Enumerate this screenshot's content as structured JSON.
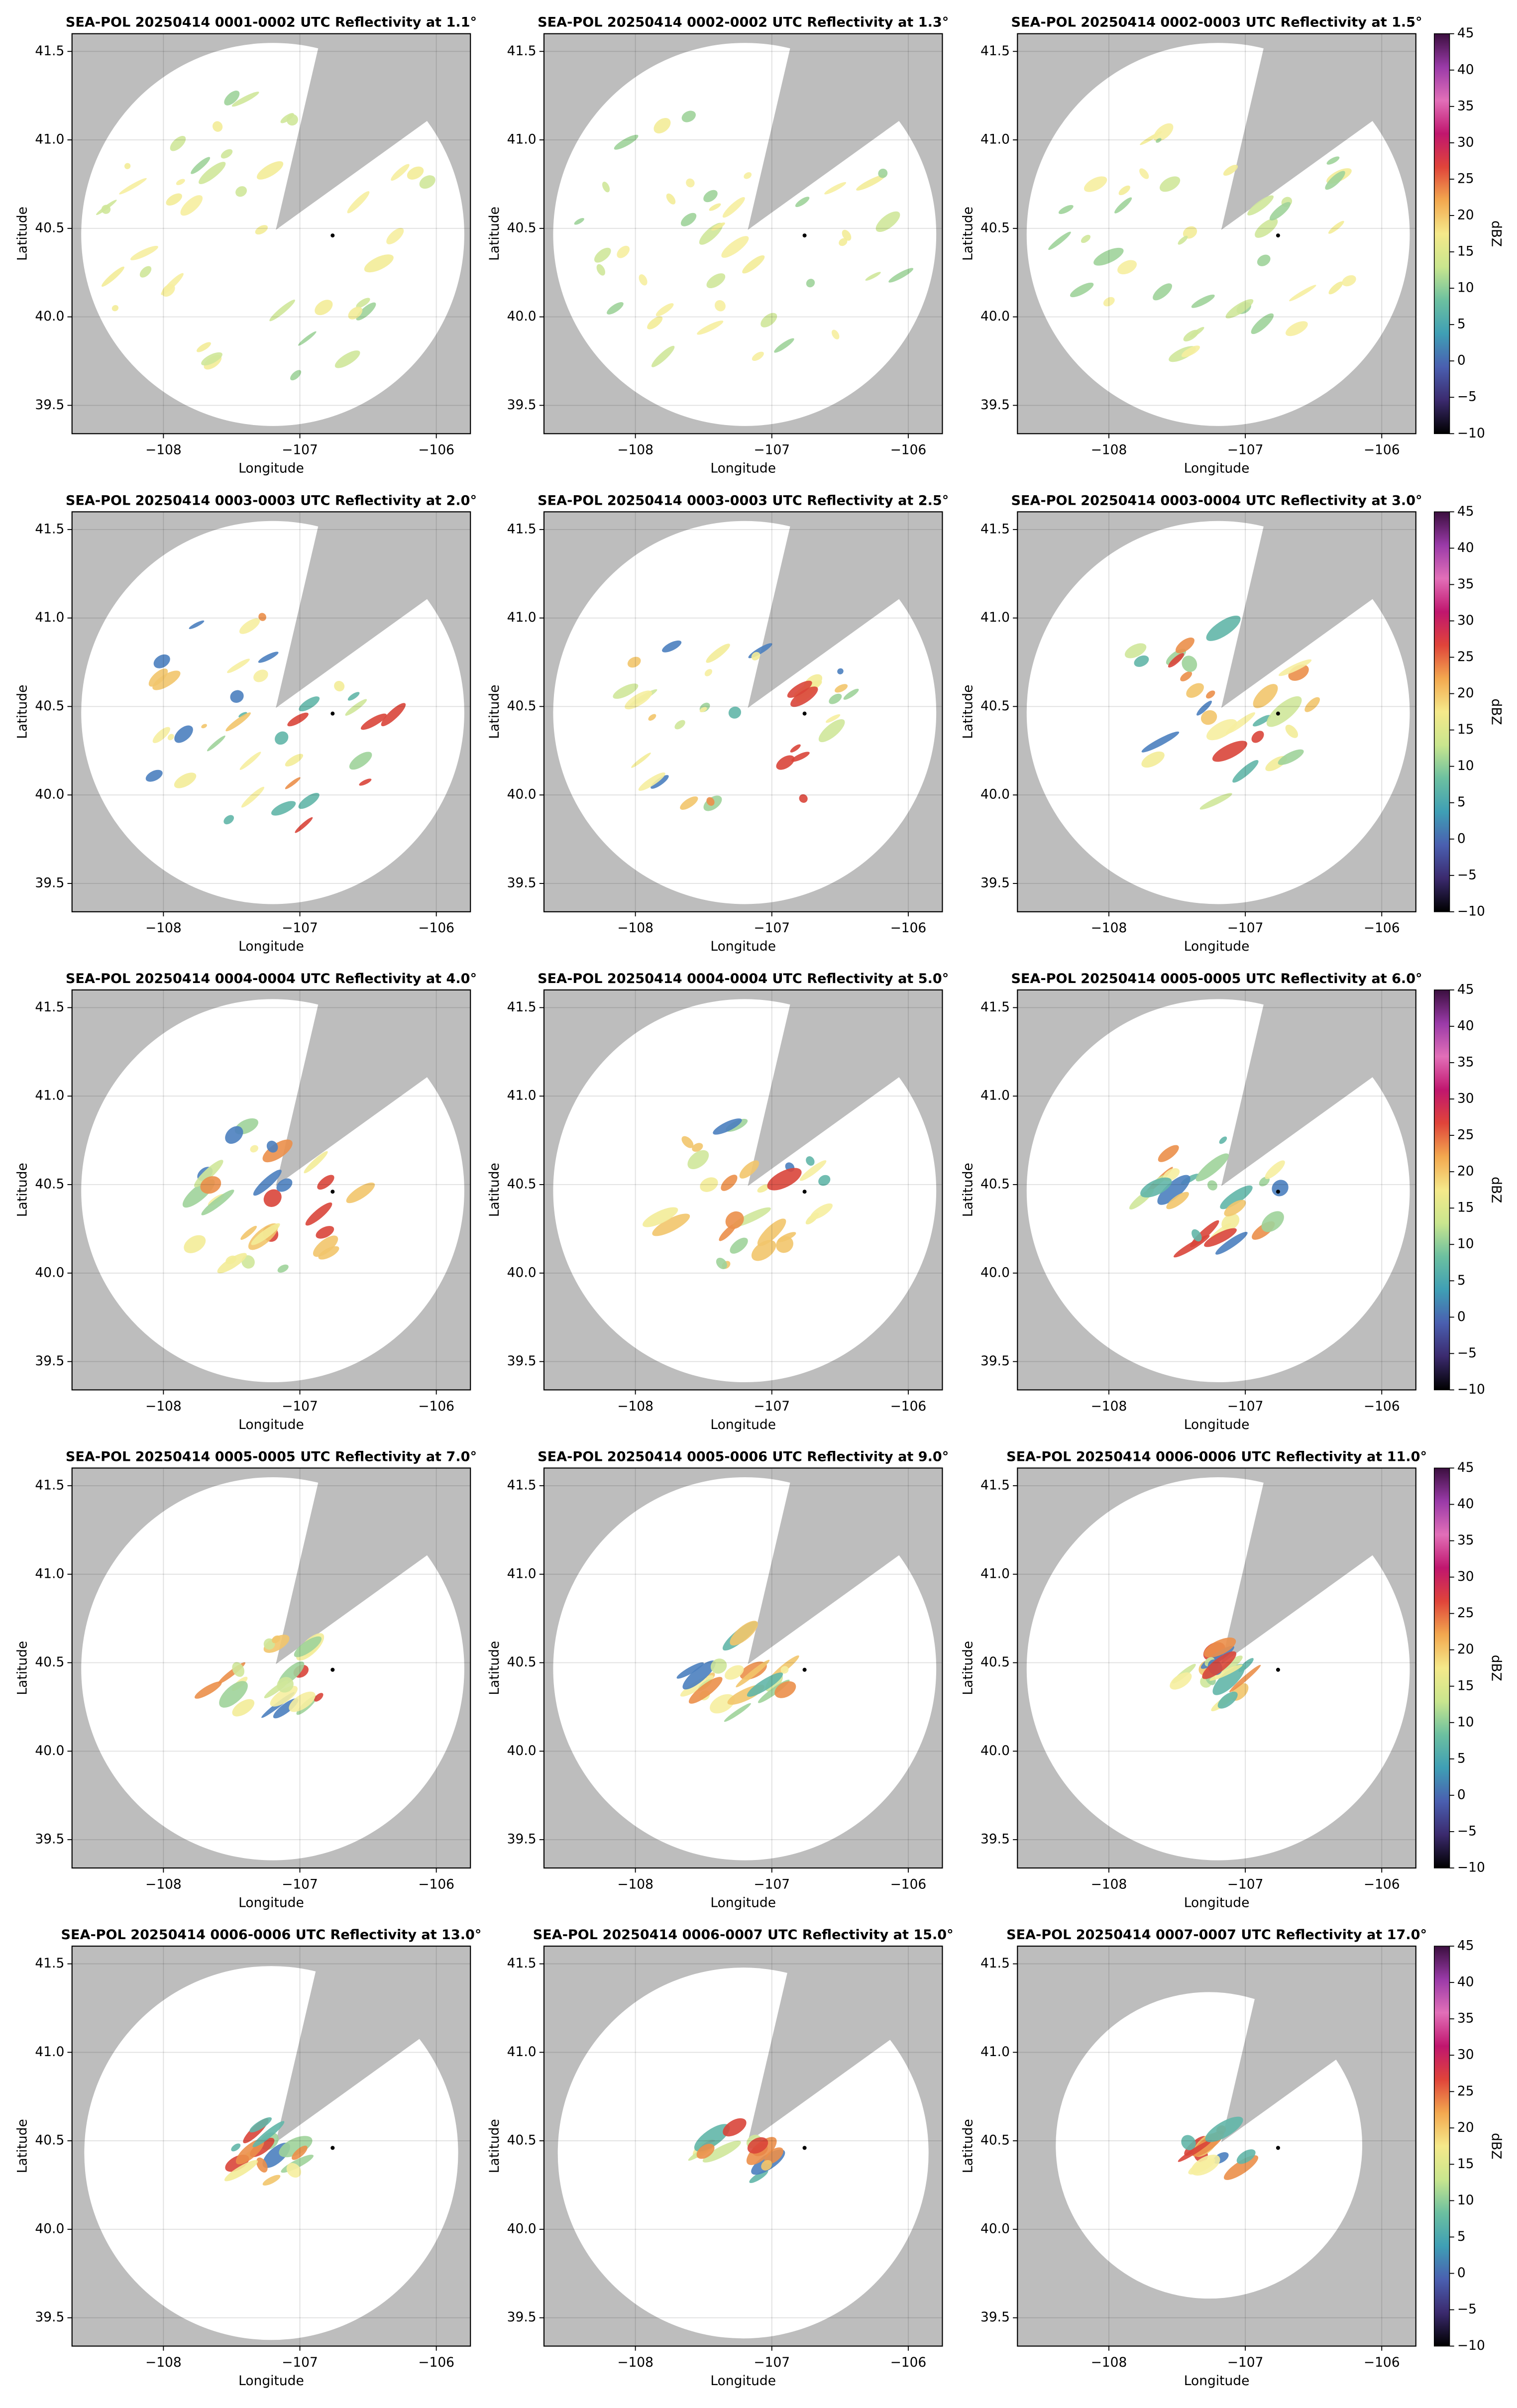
{
  "chart_data": [
    {
      "type": "scatter",
      "title": "SEA-POL 20250414 0001-0002 UTC Reflectivity at 1.1°",
      "xlabel": "Longitude",
      "ylabel": "Latitude",
      "xlim": [
        -108.67,
        -105.75
      ],
      "ylim": [
        39.34,
        41.6
      ],
      "xticks": [
        {
          "value": -108,
          "label": "−108"
        },
        {
          "value": -107,
          "label": "−107"
        },
        {
          "value": -106,
          "label": "−106"
        }
      ],
      "yticks": [
        39.5,
        {
          "value": 40,
          "label": "40.0"
        },
        40.5,
        {
          "value": 41,
          "label": "41.0"
        },
        41.5
      ],
      "grid": true,
      "x": [
        -106.76
      ],
      "y": [
        40.46
      ],
      "color": "#000000"
    },
    {
      "type": "scatter",
      "title": "SEA-POL 20250414 0002-0002 UTC Reflectivity at 1.3°",
      "xlabel": "Longitude",
      "ylabel": "Latitude",
      "xlim": [
        -108.67,
        -105.75
      ],
      "ylim": [
        39.34,
        41.6
      ],
      "xticks": [
        {
          "value": -108,
          "label": "−108"
        },
        {
          "value": -107,
          "label": "−107"
        },
        {
          "value": -106,
          "label": "−106"
        }
      ],
      "yticks": [
        39.5,
        {
          "value": 40,
          "label": "40.0"
        },
        40.5,
        {
          "value": 41,
          "label": "41.0"
        },
        41.5
      ],
      "grid": true,
      "x": [
        -106.76
      ],
      "y": [
        40.46
      ],
      "color": "#000000"
    },
    {
      "type": "scatter",
      "title": "SEA-POL 20250414 0002-0003 UTC Reflectivity at 1.5°",
      "xlabel": "Longitude",
      "ylabel": "Latitude",
      "xlim": [
        -108.67,
        -105.75
      ],
      "ylim": [
        39.34,
        41.6
      ],
      "xticks": [
        {
          "value": -108,
          "label": "−108"
        },
        {
          "value": -107,
          "label": "−107"
        },
        {
          "value": -106,
          "label": "−106"
        }
      ],
      "yticks": [
        39.5,
        {
          "value": 40,
          "label": "40.0"
        },
        40.5,
        {
          "value": 41,
          "label": "41.0"
        },
        41.5
      ],
      "grid": true,
      "x": [
        -106.76
      ],
      "y": [
        40.46
      ],
      "color": "#000000",
      "colorbar": {
        "label": "dBZ",
        "lim": [
          -10,
          45
        ],
        "ticks": [
          {
            "value": -10,
            "label": "−10"
          },
          {
            "value": -5,
            "label": "−5"
          },
          0,
          5,
          10,
          15,
          20,
          25,
          30,
          35,
          40,
          45
        ],
        "colors": [
          "#000000",
          "#3b2a6e",
          "#4a5fb0",
          "#3f9fb5",
          "#6cc0a0",
          "#c9e68e",
          "#f5e98a",
          "#f3a84f",
          "#e0443a",
          "#c0166e",
          "#e26fb8",
          "#9a3aa8",
          "#3b0f3f"
        ]
      }
    },
    {
      "type": "scatter",
      "title": "SEA-POL 20250414 0003-0003 UTC Reflectivity at 2.0°",
      "xlabel": "Longitude",
      "ylabel": "Latitude",
      "xlim": [
        -108.67,
        -105.75
      ],
      "ylim": [
        39.34,
        41.6
      ],
      "xticks": [
        {
          "value": -108,
          "label": "−108"
        },
        {
          "value": -107,
          "label": "−107"
        },
        {
          "value": -106,
          "label": "−106"
        }
      ],
      "yticks": [
        39.5,
        {
          "value": 40,
          "label": "40.0"
        },
        40.5,
        {
          "value": 41,
          "label": "41.0"
        },
        41.5
      ],
      "grid": true,
      "x": [
        -106.76
      ],
      "y": [
        40.46
      ],
      "color": "#000000"
    },
    {
      "type": "scatter",
      "title": "SEA-POL 20250414 0003-0003 UTC Reflectivity at 2.5°",
      "xlabel": "Longitude",
      "ylabel": "Latitude",
      "xlim": [
        -108.67,
        -105.75
      ],
      "ylim": [
        39.34,
        41.6
      ],
      "xticks": [
        {
          "value": -108,
          "label": "−108"
        },
        {
          "value": -107,
          "label": "−107"
        },
        {
          "value": -106,
          "label": "−106"
        }
      ],
      "yticks": [
        39.5,
        {
          "value": 40,
          "label": "40.0"
        },
        40.5,
        {
          "value": 41,
          "label": "41.0"
        },
        41.5
      ],
      "grid": true,
      "x": [
        -106.76
      ],
      "y": [
        40.46
      ],
      "color": "#000000"
    },
    {
      "type": "scatter",
      "title": "SEA-POL 20250414 0003-0004 UTC Reflectivity at 3.0°",
      "xlabel": "Longitude",
      "ylabel": "Latitude",
      "xlim": [
        -108.67,
        -105.75
      ],
      "ylim": [
        39.34,
        41.6
      ],
      "xticks": [
        {
          "value": -108,
          "label": "−108"
        },
        {
          "value": -107,
          "label": "−107"
        },
        {
          "value": -106,
          "label": "−106"
        }
      ],
      "yticks": [
        39.5,
        {
          "value": 40,
          "label": "40.0"
        },
        40.5,
        {
          "value": 41,
          "label": "41.0"
        },
        41.5
      ],
      "grid": true,
      "x": [
        -106.76
      ],
      "y": [
        40.46
      ],
      "color": "#000000",
      "colorbar": {
        "label": "dBZ",
        "lim": [
          -10,
          45
        ],
        "ticks": [
          {
            "value": -10,
            "label": "−10"
          },
          {
            "value": -5,
            "label": "−5"
          },
          0,
          5,
          10,
          15,
          20,
          25,
          30,
          35,
          40,
          45
        ],
        "colors": [
          "#000000",
          "#3b2a6e",
          "#4a5fb0",
          "#3f9fb5",
          "#6cc0a0",
          "#c9e68e",
          "#f5e98a",
          "#f3a84f",
          "#e0443a",
          "#c0166e",
          "#e26fb8",
          "#9a3aa8",
          "#3b0f3f"
        ]
      }
    },
    {
      "type": "scatter",
      "title": "SEA-POL 20250414 0004-0004 UTC Reflectivity at 4.0°",
      "xlabel": "Longitude",
      "ylabel": "Latitude",
      "xlim": [
        -108.67,
        -105.75
      ],
      "ylim": [
        39.34,
        41.6
      ],
      "xticks": [
        {
          "value": -108,
          "label": "−108"
        },
        {
          "value": -107,
          "label": "−107"
        },
        {
          "value": -106,
          "label": "−106"
        }
      ],
      "yticks": [
        39.5,
        {
          "value": 40,
          "label": "40.0"
        },
        40.5,
        {
          "value": 41,
          "label": "41.0"
        },
        41.5
      ],
      "grid": true,
      "x": [
        -106.76
      ],
      "y": [
        40.46
      ],
      "color": "#000000"
    },
    {
      "type": "scatter",
      "title": "SEA-POL 20250414 0004-0004 UTC Reflectivity at 5.0°",
      "xlabel": "Longitude",
      "ylabel": "Latitude",
      "xlim": [
        -108.67,
        -105.75
      ],
      "ylim": [
        39.34,
        41.6
      ],
      "xticks": [
        {
          "value": -108,
          "label": "−108"
        },
        {
          "value": -107,
          "label": "−107"
        },
        {
          "value": -106,
          "label": "−106"
        }
      ],
      "yticks": [
        39.5,
        {
          "value": 40,
          "label": "40.0"
        },
        40.5,
        {
          "value": 41,
          "label": "41.0"
        },
        41.5
      ],
      "grid": true,
      "x": [
        -106.76
      ],
      "y": [
        40.46
      ],
      "color": "#000000"
    },
    {
      "type": "scatter",
      "title": "SEA-POL 20250414 0005-0005 UTC Reflectivity at 6.0°",
      "xlabel": "Longitude",
      "ylabel": "Latitude",
      "xlim": [
        -108.67,
        -105.75
      ],
      "ylim": [
        39.34,
        41.6
      ],
      "xticks": [
        {
          "value": -108,
          "label": "−108"
        },
        {
          "value": -107,
          "label": "−107"
        },
        {
          "value": -106,
          "label": "−106"
        }
      ],
      "yticks": [
        39.5,
        {
          "value": 40,
          "label": "40.0"
        },
        40.5,
        {
          "value": 41,
          "label": "41.0"
        },
        41.5
      ],
      "grid": true,
      "x": [
        -106.76
      ],
      "y": [
        40.46
      ],
      "color": "#000000",
      "colorbar": {
        "label": "dBZ",
        "lim": [
          -10,
          45
        ],
        "ticks": [
          {
            "value": -10,
            "label": "−10"
          },
          {
            "value": -5,
            "label": "−5"
          },
          0,
          5,
          10,
          15,
          20,
          25,
          30,
          35,
          40,
          45
        ],
        "colors": [
          "#000000",
          "#3b2a6e",
          "#4a5fb0",
          "#3f9fb5",
          "#6cc0a0",
          "#c9e68e",
          "#f5e98a",
          "#f3a84f",
          "#e0443a",
          "#c0166e",
          "#e26fb8",
          "#9a3aa8",
          "#3b0f3f"
        ]
      }
    },
    {
      "type": "scatter",
      "title": "SEA-POL 20250414 0005-0005 UTC Reflectivity at 7.0°",
      "xlabel": "Longitude",
      "ylabel": "Latitude",
      "xlim": [
        -108.67,
        -105.75
      ],
      "ylim": [
        39.34,
        41.6
      ],
      "xticks": [
        {
          "value": -108,
          "label": "−108"
        },
        {
          "value": -107,
          "label": "−107"
        },
        {
          "value": -106,
          "label": "−106"
        }
      ],
      "yticks": [
        39.5,
        {
          "value": 40,
          "label": "40.0"
        },
        40.5,
        {
          "value": 41,
          "label": "41.0"
        },
        41.5
      ],
      "grid": true,
      "x": [
        -106.76
      ],
      "y": [
        40.46
      ],
      "color": "#000000"
    },
    {
      "type": "scatter",
      "title": "SEA-POL 20250414 0005-0006 UTC Reflectivity at 9.0°",
      "xlabel": "Longitude",
      "ylabel": "Latitude",
      "xlim": [
        -108.67,
        -105.75
      ],
      "ylim": [
        39.34,
        41.6
      ],
      "xticks": [
        {
          "value": -108,
          "label": "−108"
        },
        {
          "value": -107,
          "label": "−107"
        },
        {
          "value": -106,
          "label": "−106"
        }
      ],
      "yticks": [
        39.5,
        {
          "value": 40,
          "label": "40.0"
        },
        40.5,
        {
          "value": 41,
          "label": "41.0"
        },
        41.5
      ],
      "grid": true,
      "x": [
        -106.76
      ],
      "y": [
        40.46
      ],
      "color": "#000000"
    },
    {
      "type": "scatter",
      "title": "SEA-POL 20250414 0006-0006 UTC Reflectivity at 11.0°",
      "xlabel": "Longitude",
      "ylabel": "Latitude",
      "xlim": [
        -108.67,
        -105.75
      ],
      "ylim": [
        39.34,
        41.6
      ],
      "xticks": [
        {
          "value": -108,
          "label": "−108"
        },
        {
          "value": -107,
          "label": "−107"
        },
        {
          "value": -106,
          "label": "−106"
        }
      ],
      "yticks": [
        39.5,
        {
          "value": 40,
          "label": "40.0"
        },
        40.5,
        {
          "value": 41,
          "label": "41.0"
        },
        41.5
      ],
      "grid": true,
      "x": [
        -106.76
      ],
      "y": [
        40.46
      ],
      "color": "#000000",
      "colorbar": {
        "label": "dBZ",
        "lim": [
          -10,
          45
        ],
        "ticks": [
          {
            "value": -10,
            "label": "−10"
          },
          {
            "value": -5,
            "label": "−5"
          },
          0,
          5,
          10,
          15,
          20,
          25,
          30,
          35,
          40,
          45
        ],
        "colors": [
          "#000000",
          "#3b2a6e",
          "#4a5fb0",
          "#3f9fb5",
          "#6cc0a0",
          "#c9e68e",
          "#f5e98a",
          "#f3a84f",
          "#e0443a",
          "#c0166e",
          "#e26fb8",
          "#9a3aa8",
          "#3b0f3f"
        ]
      }
    },
    {
      "type": "scatter",
      "title": "SEA-POL 20250414 0006-0006 UTC Reflectivity at 13.0°",
      "xlabel": "Longitude",
      "ylabel": "Latitude",
      "xlim": [
        -108.67,
        -105.75
      ],
      "ylim": [
        39.34,
        41.6
      ],
      "xticks": [
        {
          "value": -108,
          "label": "−108"
        },
        {
          "value": -107,
          "label": "−107"
        },
        {
          "value": -106,
          "label": "−106"
        }
      ],
      "yticks": [
        39.5,
        {
          "value": 40,
          "label": "40.0"
        },
        40.5,
        {
          "value": 41,
          "label": "41.0"
        },
        41.5
      ],
      "grid": true,
      "x": [
        -106.76
      ],
      "y": [
        40.46
      ],
      "color": "#000000"
    },
    {
      "type": "scatter",
      "title": "SEA-POL 20250414 0006-0007 UTC Reflectivity at 15.0°",
      "xlabel": "Longitude",
      "ylabel": "Latitude",
      "xlim": [
        -108.67,
        -105.75
      ],
      "ylim": [
        39.34,
        41.6
      ],
      "xticks": [
        {
          "value": -108,
          "label": "−108"
        },
        {
          "value": -107,
          "label": "−107"
        },
        {
          "value": -106,
          "label": "−106"
        }
      ],
      "yticks": [
        39.5,
        {
          "value": 40,
          "label": "40.0"
        },
        40.5,
        {
          "value": 41,
          "label": "41.0"
        },
        41.5
      ],
      "grid": true,
      "x": [
        -106.76
      ],
      "y": [
        40.46
      ],
      "color": "#000000"
    },
    {
      "type": "scatter",
      "title": "SEA-POL 20250414 0007-0007 UTC Reflectivity at 17.0°",
      "xlabel": "Longitude",
      "ylabel": "Latitude",
      "xlim": [
        -108.67,
        -105.75
      ],
      "ylim": [
        39.34,
        41.6
      ],
      "xticks": [
        {
          "value": -108,
          "label": "−108"
        },
        {
          "value": -107,
          "label": "−107"
        },
        {
          "value": -106,
          "label": "−106"
        }
      ],
      "yticks": [
        39.5,
        {
          "value": 40,
          "label": "40.0"
        },
        40.5,
        {
          "value": 41,
          "label": "41.0"
        },
        41.5
      ],
      "grid": true,
      "x": [
        -106.76
      ],
      "y": [
        40.46
      ],
      "color": "#000000",
      "colorbar": {
        "label": "dBZ",
        "lim": [
          -10,
          45
        ],
        "ticks": [
          {
            "value": -10,
            "label": "−10"
          },
          {
            "value": -5,
            "label": "−5"
          },
          0,
          5,
          10,
          15,
          20,
          25,
          30,
          35,
          40,
          45
        ],
        "colors": [
          "#000000",
          "#3b2a6e",
          "#4a5fb0",
          "#3f9fb5",
          "#6cc0a0",
          "#c9e68e",
          "#f5e98a",
          "#f3a84f",
          "#e0443a",
          "#c0166e",
          "#e26fb8",
          "#9a3aa8",
          "#3b0f3f"
        ]
      }
    }
  ]
}
